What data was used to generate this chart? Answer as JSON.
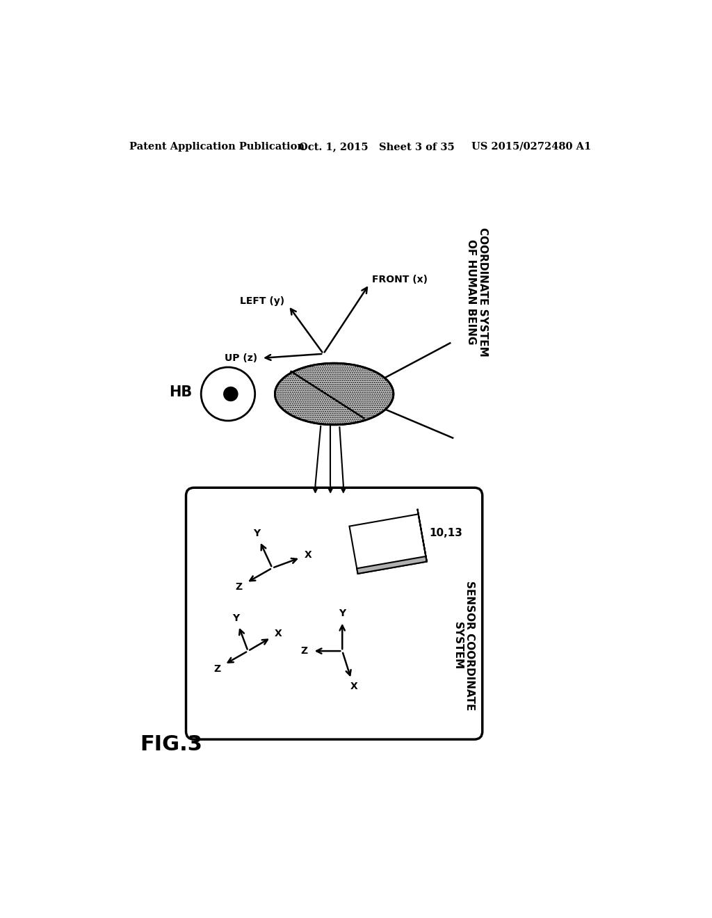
{
  "bg_color": "#ffffff",
  "header_left": "Patent Application Publication",
  "header_mid": "Oct. 1, 2015   Sheet 3 of 35",
  "header_right": "US 2015/0272480 A1",
  "fig_label": "FIG.3",
  "hb_label": "HB",
  "coord_system_label": "COORDINATE SYSTEM\nOF HUMAN BEING",
  "sensor_coord_label": "SENSOR COORDINATE\nSYSTEM",
  "sensor_device_label": "10,13",
  "axis_front_label": "FRONT (x)",
  "axis_left_label": "LEFT (y)",
  "axis_up_label": "UP (z)"
}
